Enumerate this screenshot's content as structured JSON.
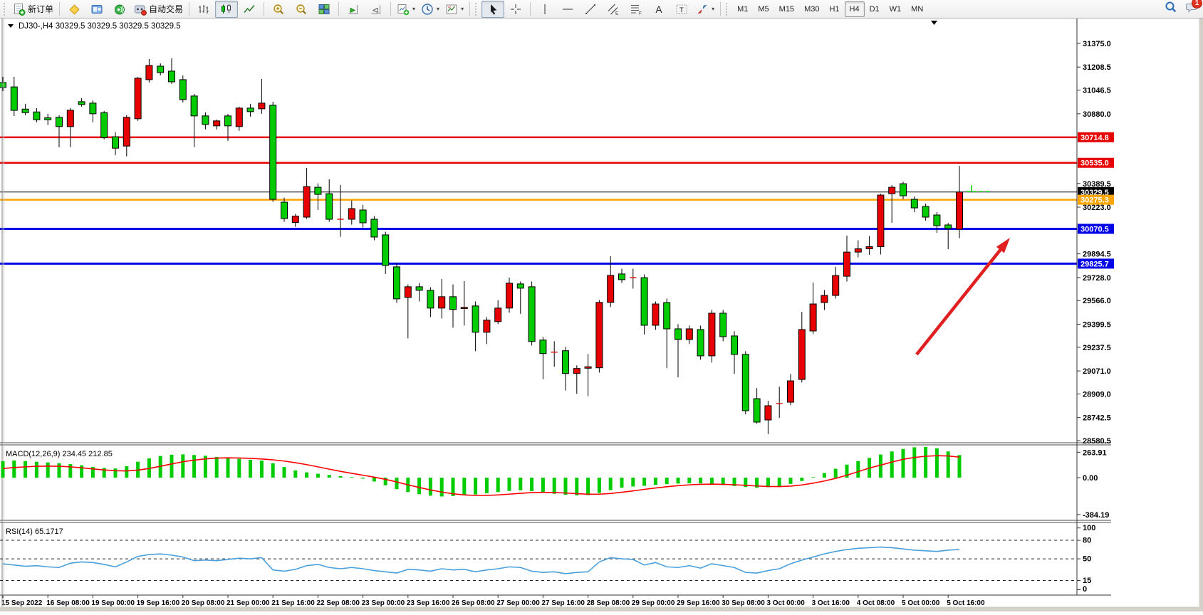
{
  "toolbar": {
    "groups": [
      {
        "items": [
          {
            "name": "new-order",
            "icon": "new-order",
            "label": "新订单"
          }
        ]
      },
      {
        "items": [
          {
            "name": "metaeditor",
            "icon": "yellow-diamond"
          },
          {
            "name": "market-watch",
            "icon": "blue-panel"
          },
          {
            "name": "signals",
            "icon": "green-signal"
          },
          {
            "name": "auto-trading",
            "icon": "autotrade",
            "label": "自动交易"
          }
        ]
      },
      {
        "items": [
          {
            "name": "bar-chart",
            "icon": "bars"
          },
          {
            "name": "candle-chart",
            "icon": "candles",
            "pressed": true
          },
          {
            "name": "line-chart",
            "icon": "linechart"
          }
        ]
      },
      {
        "items": [
          {
            "name": "zoom-in",
            "icon": "zoom-in"
          },
          {
            "name": "zoom-out",
            "icon": "zoom-out"
          },
          {
            "name": "tile-windows",
            "icon": "tiles"
          }
        ]
      },
      {
        "items": [
          {
            "name": "chart-shift",
            "icon": "shift"
          },
          {
            "name": "auto-scroll",
            "icon": "autoscroll"
          }
        ]
      },
      {
        "items": [
          {
            "name": "new-chart",
            "icon": "new-chart",
            "caret": true
          },
          {
            "name": "profiles",
            "icon": "clock",
            "caret": true
          },
          {
            "name": "templates",
            "icon": "template",
            "caret": true
          }
        ]
      },
      {
        "items": [
          {
            "name": "cursor",
            "icon": "cursor",
            "pressed": true
          },
          {
            "name": "crosshair",
            "icon": "crosshair"
          }
        ]
      },
      {
        "items": [
          {
            "name": "vertical-line",
            "icon": "vline"
          },
          {
            "name": "horizontal-line",
            "icon": "hline"
          },
          {
            "name": "trendline",
            "icon": "trend"
          },
          {
            "name": "equidistant-channel",
            "icon": "channel"
          },
          {
            "name": "fibonacci",
            "icon": "fibo"
          },
          {
            "name": "text",
            "icon": "textA"
          },
          {
            "name": "text-label",
            "icon": "textT"
          },
          {
            "name": "arrows",
            "icon": "arrows",
            "caret": true
          }
        ]
      }
    ],
    "timeframes": [
      "M1",
      "M5",
      "M15",
      "M30",
      "H1",
      "H4",
      "D1",
      "W1",
      "MN"
    ],
    "active_timeframe": "H4",
    "right_icons": [
      {
        "name": "search",
        "icon": "search"
      },
      {
        "name": "notifications",
        "icon": "chat",
        "badge": "1"
      }
    ]
  },
  "chart": {
    "symbol_line": "DJ30-,H4  30329.5 30329.5 30329.5 30329.5"
  },
  "chart_data": {
    "type": "candlestick",
    "symbol": "DJ30-",
    "timeframe": "H4",
    "colors": {
      "up": "#e80000",
      "down": "#00cc00",
      "wick": "#000000",
      "blue_line": "#0000e8",
      "orange_line": "#ffa500",
      "red_line": "#e80000"
    },
    "price_axis_ticks": [
      "31375.0",
      "31208.5",
      "31046.5",
      "30880.0",
      "30389.5",
      "30223.0",
      "29894.5",
      "29728.0",
      "29566.0",
      "29399.5",
      "29237.5",
      "29071.0",
      "28909.0",
      "28742.5",
      "28580.5"
    ],
    "hlines": [
      {
        "price": 30714.8,
        "label": "30714.8",
        "color": "#e80000",
        "width": 2.5
      },
      {
        "price": 30535.0,
        "label": "30535.0",
        "color": "#e80000",
        "width": 2.5
      },
      {
        "price": 30329.5,
        "label": "30329.5",
        "color": "#000000",
        "width": 1
      },
      {
        "price": 30275.3,
        "label": "30275.3",
        "color": "#ffa500",
        "width": 2.5
      },
      {
        "price": 30070.5,
        "label": "30070.5",
        "color": "#0000e8",
        "width": 3
      },
      {
        "price": 29825.7,
        "label": "29825.7",
        "color": "#0000e8",
        "width": 3
      }
    ],
    "ask_line": {
      "price": 30332.0,
      "color": "#00cc00"
    },
    "candles": [
      [
        31100,
        31140,
        31040,
        31065
      ],
      [
        31069,
        31140,
        30864,
        30904
      ],
      [
        30913,
        30950,
        30870,
        30888
      ],
      [
        30893,
        30920,
        30820,
        30838
      ],
      [
        30852,
        30880,
        30800,
        30838
      ],
      [
        30855,
        30870,
        30645,
        30790
      ],
      [
        30790,
        30920,
        30645,
        30905
      ],
      [
        30965,
        30990,
        30930,
        30945
      ],
      [
        30955,
        30975,
        30820,
        30880
      ],
      [
        30888,
        30900,
        30700,
        30713
      ],
      [
        30718,
        30750,
        30588,
        30638
      ],
      [
        30653,
        30870,
        30580,
        30855
      ],
      [
        30845,
        31140,
        30830,
        31130
      ],
      [
        31120,
        31265,
        31100,
        31220
      ],
      [
        31215,
        31235,
        31150,
        31170
      ],
      [
        31180,
        31270,
        31090,
        31105
      ],
      [
        31120,
        31150,
        30960,
        30980
      ],
      [
        31005,
        31020,
        30645,
        30865
      ],
      [
        30865,
        30890,
        30770,
        30805
      ],
      [
        30795,
        30840,
        30770,
        30830
      ],
      [
        30865,
        30880,
        30690,
        30795
      ],
      [
        30790,
        30930,
        30760,
        30920
      ],
      [
        30920,
        30950,
        30860,
        30895
      ],
      [
        30915,
        31125,
        30880,
        30955
      ],
      [
        30940,
        30965,
        30260,
        30278
      ],
      [
        30258,
        30290,
        30120,
        30143
      ],
      [
        30115,
        30175,
        30085,
        30160
      ],
      [
        30153,
        30499,
        30140,
        30368
      ],
      [
        30363,
        30390,
        30203,
        30313
      ],
      [
        30318,
        30419,
        30120,
        30138
      ],
      [
        30138,
        30380,
        30015,
        30138
      ],
      [
        30138,
        30270,
        30100,
        30213
      ],
      [
        30203,
        30240,
        30080,
        30113
      ],
      [
        30138,
        30160,
        29990,
        30013
      ],
      [
        30028,
        30050,
        29753,
        29813
      ],
      [
        29803,
        29830,
        29550,
        29578
      ],
      [
        29588,
        29680,
        29300,
        29663
      ],
      [
        29663,
        29690,
        29560,
        29638
      ],
      [
        29638,
        29660,
        29450,
        29513
      ],
      [
        29513,
        29718,
        29440,
        29593
      ],
      [
        29593,
        29680,
        29375,
        29503
      ],
      [
        29510,
        29703,
        29390,
        29518
      ],
      [
        29528,
        29560,
        29210,
        29343
      ],
      [
        29343,
        29450,
        29260,
        29428
      ],
      [
        29418,
        29568,
        29400,
        29513
      ],
      [
        29513,
        29728,
        29480,
        29688
      ],
      [
        29683,
        29700,
        29473,
        29653
      ],
      [
        29663,
        29700,
        29250,
        29278
      ],
      [
        29288,
        29310,
        29013,
        29193
      ],
      [
        29203,
        29280,
        29100,
        29203
      ],
      [
        29213,
        29240,
        28933,
        29053
      ],
      [
        29053,
        29110,
        28910,
        29088
      ],
      [
        29090,
        29190,
        28893,
        29100
      ],
      [
        29093,
        29570,
        29060,
        29553
      ],
      [
        29553,
        29878,
        29520,
        29743
      ],
      [
        29753,
        29790,
        29690,
        29713
      ],
      [
        29727,
        29790,
        29650,
        29727
      ],
      [
        29727,
        29750,
        29327,
        29392
      ],
      [
        29392,
        29560,
        29360,
        29542
      ],
      [
        29552,
        29580,
        29091,
        29367
      ],
      [
        29367,
        29400,
        29026,
        29292
      ],
      [
        29292,
        29390,
        29260,
        29367
      ],
      [
        29362,
        29390,
        29150,
        29177
      ],
      [
        29177,
        29500,
        29130,
        29477
      ],
      [
        29477,
        29500,
        29280,
        29312
      ],
      [
        29317,
        29350,
        29051,
        29187
      ],
      [
        29187,
        29210,
        28766,
        28791
      ],
      [
        28876,
        28950,
        28700,
        28711
      ],
      [
        28726,
        28860,
        28626,
        28826
      ],
      [
        28835,
        28960,
        28740,
        28841
      ],
      [
        28851,
        29050,
        28830,
        29001
      ],
      [
        29011,
        29487,
        28990,
        29362
      ],
      [
        29352,
        29692,
        29330,
        29542
      ],
      [
        29552,
        29640,
        29500,
        29602
      ],
      [
        29602,
        29803,
        29580,
        29742
      ],
      [
        29737,
        30023,
        29700,
        29907
      ],
      [
        29907,
        29990,
        29870,
        29930
      ],
      [
        29930,
        30020,
        29888,
        29945
      ],
      [
        29945,
        30318,
        29890,
        30308
      ],
      [
        30318,
        30378,
        30113,
        30363
      ],
      [
        30388,
        30402,
        30278,
        30303
      ],
      [
        30278,
        30298,
        30188,
        30218
      ],
      [
        30228,
        30248,
        30128,
        30153
      ],
      [
        30168,
        30188,
        30043,
        30093
      ],
      [
        30098,
        30112,
        29928,
        30073
      ],
      [
        30068,
        30513,
        30005,
        30329.5
      ]
    ],
    "macd": {
      "label": "MACD(12,26,9) 234.45 212.85",
      "value": 234.45,
      "signal_value": 212.85,
      "ticks": [
        {
          "label": "263.91",
          "value": 263.91
        },
        {
          "label": "0.00",
          "value": 0
        },
        {
          "label": "-384.19",
          "value": -384.19
        }
      ],
      "hist_color": "#00cc00",
      "signal_color": "#ff0000",
      "histogram": [
        170,
        178,
        172,
        165,
        158,
        150,
        140,
        128,
        112,
        100,
        95,
        118,
        165,
        200,
        225,
        238,
        242,
        235,
        228,
        215,
        205,
        195,
        185,
        178,
        150,
        110,
        75,
        55,
        40,
        28,
        15,
        5,
        -10,
        -40,
        -80,
        -120,
        -150,
        -172,
        -188,
        -196,
        -192,
        -185,
        -175,
        -162,
        -150,
        -138,
        -132,
        -140,
        -155,
        -168,
        -178,
        -185,
        -182,
        -160,
        -130,
        -105,
        -92,
        -85,
        -75,
        -68,
        -62,
        -58,
        -60,
        -68,
        -78,
        -88,
        -98,
        -105,
        -100,
        -88,
        -65,
        -35,
        5,
        48,
        92,
        135,
        172,
        205,
        240,
        272,
        298,
        315,
        318,
        305,
        272,
        234.45
      ],
      "signal": [
        95,
        105,
        112,
        118,
        120,
        118,
        112,
        102,
        90,
        80,
        72,
        70,
        78,
        95,
        118,
        142,
        165,
        182,
        195,
        203,
        206,
        204,
        200,
        194,
        185,
        172,
        155,
        135,
        112,
        88,
        65,
        45,
        25,
        5,
        -18,
        -45,
        -75,
        -102,
        -128,
        -150,
        -168,
        -180,
        -185,
        -185,
        -180,
        -172,
        -163,
        -156,
        -153,
        -155,
        -160,
        -167,
        -172,
        -172,
        -165,
        -152,
        -138,
        -122,
        -108,
        -95,
        -84,
        -75,
        -70,
        -68,
        -70,
        -74,
        -80,
        -87,
        -92,
        -93,
        -88,
        -76,
        -58,
        -35,
        -8,
        25,
        62,
        100,
        130,
        162,
        190,
        210,
        222,
        228,
        225,
        212.85
      ]
    },
    "rsi": {
      "label": "RSI(14) 65.1717",
      "value": 65.1717,
      "color": "#4aa0dc",
      "ticks": [
        {
          "label": "100",
          "value": 100
        },
        {
          "label": "80",
          "value": 80
        },
        {
          "label": "50",
          "value": 50
        },
        {
          "label": "15",
          "value": 15
        },
        {
          "label": "0",
          "value": 0
        }
      ],
      "levels": [
        80,
        50,
        15
      ],
      "values": [
        42,
        40,
        38,
        39,
        37,
        36,
        43,
        45,
        44,
        41,
        37,
        45,
        54,
        57,
        58,
        56,
        53,
        47,
        48,
        47,
        49,
        51,
        50,
        52,
        32,
        30,
        33,
        39,
        41,
        36,
        34,
        36,
        34,
        31,
        29,
        27,
        33,
        32,
        30,
        34,
        32,
        33,
        29,
        32,
        34,
        37,
        36,
        30,
        28,
        29,
        26,
        28,
        29,
        45,
        52,
        50,
        49,
        40,
        44,
        37,
        36,
        39,
        35,
        42,
        39,
        36,
        28,
        27,
        31,
        34,
        42,
        48,
        53,
        58,
        62,
        65,
        67,
        68,
        69,
        68,
        66,
        64,
        63,
        62,
        64,
        65.17
      ]
    },
    "time_axis": {
      "labels": [
        [
          "15 Sep 2022",
          0
        ],
        [
          "16 Sep 08:00",
          4
        ],
        [
          "19 Sep 00:00",
          8
        ],
        [
          "19 Sep 16:00",
          12
        ],
        [
          "20 Sep 08:00",
          16
        ],
        [
          "21 Sep 00:00",
          20
        ],
        [
          "21 Sep 16:00",
          24
        ],
        [
          "22 Sep 08:00",
          28
        ],
        [
          "23 Sep 00:00",
          32
        ],
        [
          "23 Sep 16:00",
          36
        ],
        [
          "26 Sep 08:00",
          40
        ],
        [
          "27 Sep 00:00",
          44
        ],
        [
          "27 Sep 16:00",
          48
        ],
        [
          "28 Sep 08:00",
          52
        ],
        [
          "29 Sep 00:00",
          56
        ],
        [
          "29 Sep 16:00",
          60
        ],
        [
          "30 Sep 08:00",
          64
        ],
        [
          "3 Oct 00:00",
          68
        ],
        [
          "3 Oct 16:00",
          72
        ],
        [
          "4 Oct 08:00",
          76
        ],
        [
          "5 Oct 00:00",
          80
        ],
        [
          "5 Oct 16:00",
          84
        ]
      ]
    },
    "arrow": {
      "from_bar": 81.2,
      "from_price": 29187,
      "to_bar": 89.5,
      "to_price": 30008,
      "color": "#e02020"
    }
  }
}
